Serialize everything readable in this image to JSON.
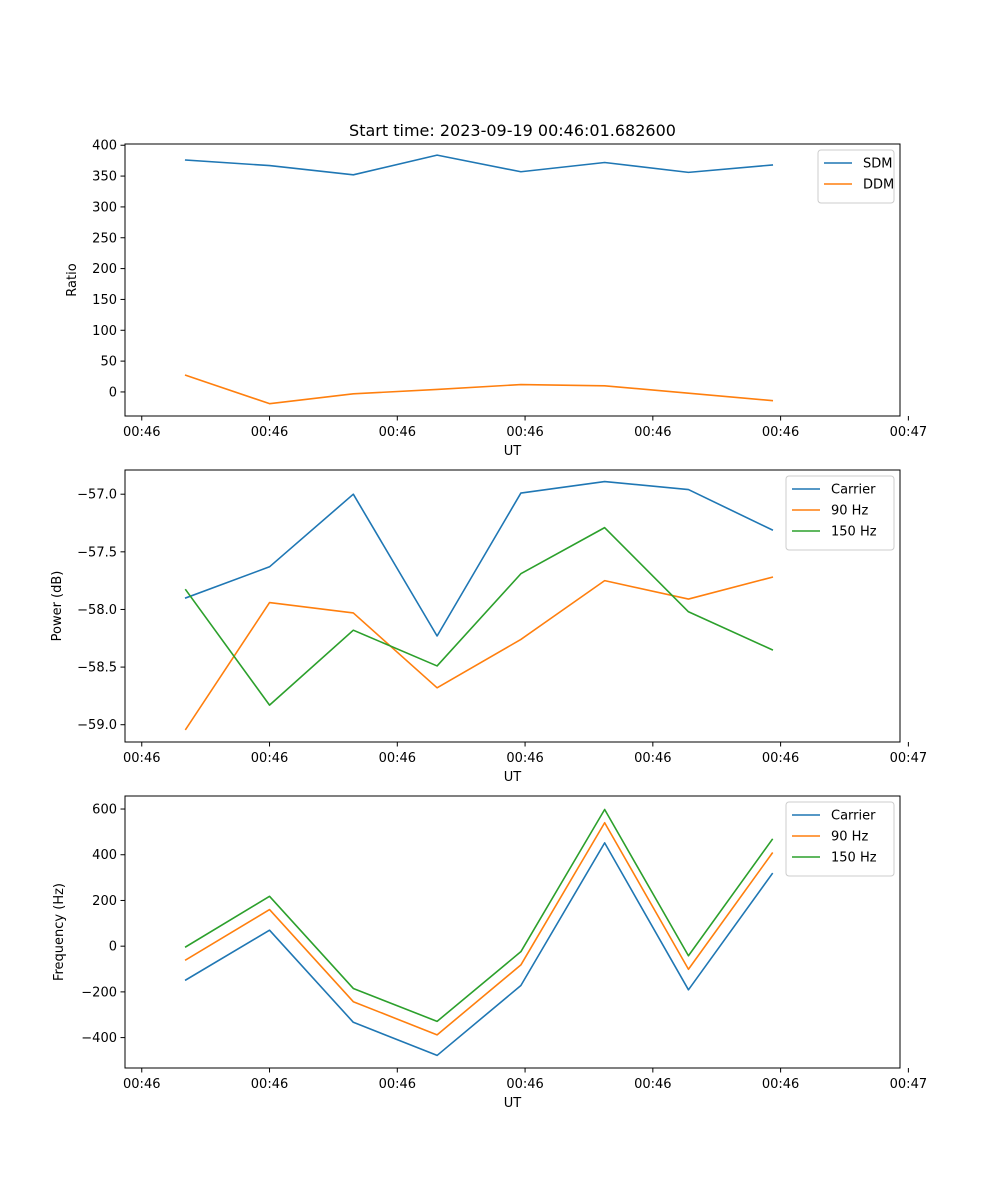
{
  "figure_title": "Start time: 2023-09-19 00:46:01.682600",
  "colors": {
    "blue": "#1f77b4",
    "orange": "#ff7f0e",
    "green": "#2ca02c"
  },
  "chart_data": [
    {
      "type": "line",
      "title": "Start time: 2023-09-19 00:46:01.682600",
      "xlabel": "UT",
      "ylabel": "Ratio",
      "x": [
        1,
        2,
        3,
        4,
        5,
        6,
        7,
        8
      ],
      "xlim": [
        0.275,
        9.525
      ],
      "x_ticks": [
        0.475,
        2,
        3.525,
        5.05,
        6.575,
        8.1,
        9.625
      ],
      "x_tick_labels": [
        "00:46",
        "00:46",
        "00:46",
        "00:46",
        "00:46",
        "00:46",
        "00:47"
      ],
      "ylim": [
        -39,
        402
      ],
      "y_ticks": [
        0,
        50,
        100,
        150,
        200,
        250,
        300,
        350,
        400
      ],
      "y_tick_labels": [
        "0",
        "50",
        "100",
        "150",
        "200",
        "250",
        "300",
        "350",
        "400"
      ],
      "legend": "top-right",
      "series": [
        {
          "name": "SDM",
          "color": "#1f77b4",
          "values": [
            376,
            367,
            352,
            384,
            357,
            372,
            356,
            368
          ]
        },
        {
          "name": "DDM",
          "color": "#ff7f0e",
          "values": [
            27,
            -19,
            -3,
            4,
            12,
            10,
            -2,
            -14
          ]
        }
      ]
    },
    {
      "type": "line",
      "title": "",
      "xlabel": "UT",
      "ylabel": "Power (dB)",
      "x": [
        1,
        2,
        3,
        4,
        5,
        6,
        7,
        8
      ],
      "xlim": [
        0.275,
        9.525
      ],
      "x_ticks": [
        0.475,
        2,
        3.525,
        5.05,
        6.575,
        8.1,
        9.625
      ],
      "x_tick_labels": [
        "00:46",
        "00:46",
        "00:46",
        "00:46",
        "00:46",
        "00:46",
        "00:47"
      ],
      "ylim": [
        -59.15,
        -56.79
      ],
      "y_ticks": [
        -59.0,
        -58.5,
        -58.0,
        -57.5,
        -57.0
      ],
      "y_tick_labels": [
        "−59.0",
        "−58.5",
        "−58.0",
        "−57.5",
        "−57.0"
      ],
      "legend": "top-right",
      "series": [
        {
          "name": "Carrier",
          "color": "#1f77b4",
          "values": [
            -57.9,
            -57.63,
            -57.0,
            -58.23,
            -56.99,
            -56.89,
            -56.96,
            -57.31
          ]
        },
        {
          "name": "90 Hz",
          "color": "#ff7f0e",
          "values": [
            -59.04,
            -57.94,
            -58.03,
            -58.68,
            -58.26,
            -57.75,
            -57.91,
            -57.72
          ]
        },
        {
          "name": "150 Hz",
          "color": "#2ca02c",
          "values": [
            -57.83,
            -58.83,
            -58.18,
            -58.49,
            -57.69,
            -57.29,
            -58.02,
            -58.35
          ]
        }
      ]
    },
    {
      "type": "line",
      "title": "",
      "xlabel": "UT",
      "ylabel": "Frequency (Hz)",
      "x": [
        1,
        2,
        3,
        4,
        5,
        6,
        7,
        8
      ],
      "xlim": [
        0.275,
        9.525
      ],
      "x_ticks": [
        0.475,
        2,
        3.525,
        5.05,
        6.575,
        8.1,
        9.625
      ],
      "x_tick_labels": [
        "00:46",
        "00:46",
        "00:46",
        "00:46",
        "00:46",
        "00:46",
        "00:47"
      ],
      "ylim": [
        -533,
        657
      ],
      "y_ticks": [
        -400,
        -200,
        0,
        200,
        400,
        600
      ],
      "y_tick_labels": [
        "−400",
        "−200",
        "0",
        "200",
        "400",
        "600"
      ],
      "legend": "top-right",
      "series": [
        {
          "name": "Carrier",
          "color": "#1f77b4",
          "values": [
            -148,
            70,
            -333,
            -478,
            -172,
            452,
            -191,
            317
          ]
        },
        {
          "name": "90 Hz",
          "color": "#ff7f0e",
          "values": [
            -60,
            160,
            -243,
            -388,
            -82,
            540,
            -101,
            407
          ]
        },
        {
          "name": "150 Hz",
          "color": "#2ca02c",
          "values": [
            -3,
            218,
            -185,
            -329,
            -24,
            598,
            -42,
            467
          ]
        }
      ]
    }
  ]
}
